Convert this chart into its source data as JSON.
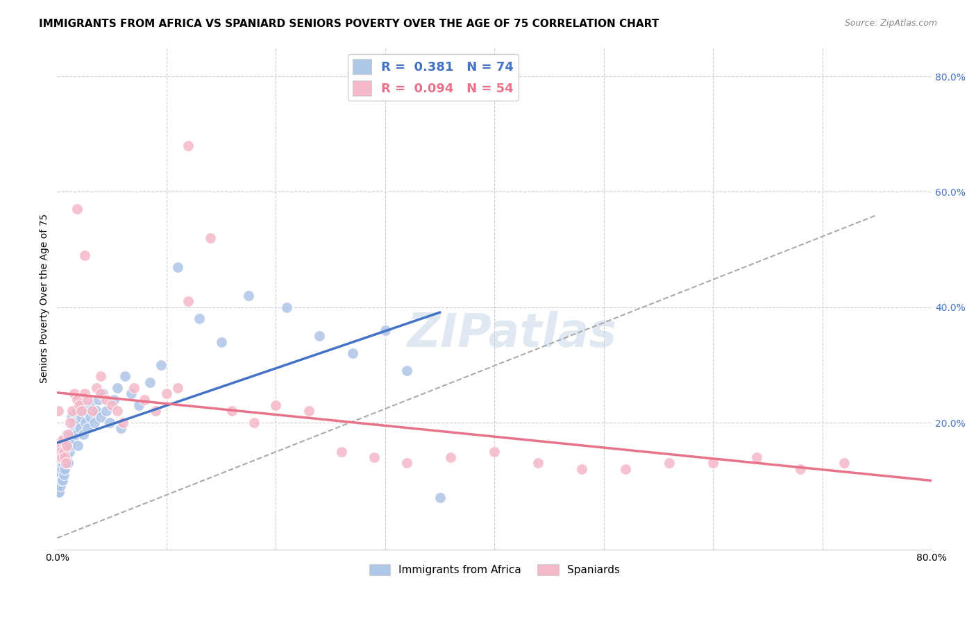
{
  "title": "IMMIGRANTS FROM AFRICA VS SPANIARD SENIORS POVERTY OVER THE AGE OF 75 CORRELATION CHART",
  "source": "Source: ZipAtlas.com",
  "ylabel": "Seniors Poverty Over the Age of 75",
  "xlim": [
    0,
    0.8
  ],
  "ylim": [
    -0.02,
    0.85
  ],
  "y_ticks_right": [
    0.2,
    0.4,
    0.6,
    0.8
  ],
  "y_tick_labels_right": [
    "20.0%",
    "40.0%",
    "60.0%",
    "80.0%"
  ],
  "legend_blue_label": "R =  0.381   N = 74",
  "legend_pink_label": "R =  0.094   N = 54",
  "legend_blue_color": "#aec6e8",
  "legend_pink_color": "#f4b8c8",
  "blue_trend_color": "#4472c4",
  "pink_trend_color": "#e8728a",
  "blue_dot_color": "#aec6e8",
  "pink_dot_color": "#f4b8c8",
  "grid_color": "#cccccc",
  "watermark_text": "ZIPatlas",
  "blue_scatter_x": [
    0.001,
    0.001,
    0.001,
    0.002,
    0.002,
    0.002,
    0.002,
    0.002,
    0.003,
    0.003,
    0.003,
    0.003,
    0.004,
    0.004,
    0.004,
    0.005,
    0.005,
    0.005,
    0.006,
    0.006,
    0.006,
    0.007,
    0.007,
    0.008,
    0.008,
    0.009,
    0.009,
    0.01,
    0.01,
    0.011,
    0.012,
    0.013,
    0.013,
    0.014,
    0.015,
    0.016,
    0.017,
    0.018,
    0.019,
    0.02,
    0.021,
    0.022,
    0.023,
    0.024,
    0.025,
    0.026,
    0.028,
    0.03,
    0.032,
    0.034,
    0.036,
    0.038,
    0.04,
    0.042,
    0.045,
    0.048,
    0.052,
    0.055,
    0.058,
    0.062,
    0.068,
    0.075,
    0.085,
    0.095,
    0.11,
    0.13,
    0.15,
    0.175,
    0.21,
    0.24,
    0.27,
    0.3,
    0.32,
    0.35
  ],
  "blue_scatter_y": [
    0.08,
    0.1,
    0.12,
    0.08,
    0.1,
    0.11,
    0.13,
    0.15,
    0.09,
    0.11,
    0.13,
    0.16,
    0.1,
    0.12,
    0.14,
    0.1,
    0.13,
    0.16,
    0.11,
    0.14,
    0.17,
    0.12,
    0.15,
    0.13,
    0.16,
    0.14,
    0.18,
    0.13,
    0.17,
    0.15,
    0.16,
    0.18,
    0.21,
    0.17,
    0.19,
    0.2,
    0.18,
    0.22,
    0.16,
    0.2,
    0.19,
    0.21,
    0.23,
    0.18,
    0.22,
    0.2,
    0.19,
    0.21,
    0.23,
    0.2,
    0.22,
    0.24,
    0.21,
    0.25,
    0.22,
    0.2,
    0.24,
    0.26,
    0.19,
    0.28,
    0.25,
    0.23,
    0.27,
    0.3,
    0.47,
    0.38,
    0.34,
    0.42,
    0.4,
    0.35,
    0.32,
    0.36,
    0.29,
    0.07
  ],
  "pink_scatter_x": [
    0.001,
    0.001,
    0.002,
    0.003,
    0.004,
    0.005,
    0.006,
    0.007,
    0.008,
    0.009,
    0.01,
    0.012,
    0.014,
    0.016,
    0.018,
    0.02,
    0.022,
    0.025,
    0.028,
    0.032,
    0.036,
    0.04,
    0.045,
    0.05,
    0.055,
    0.06,
    0.07,
    0.08,
    0.09,
    0.1,
    0.11,
    0.12,
    0.14,
    0.16,
    0.18,
    0.2,
    0.23,
    0.26,
    0.29,
    0.32,
    0.36,
    0.4,
    0.44,
    0.48,
    0.52,
    0.56,
    0.6,
    0.64,
    0.68,
    0.72,
    0.018,
    0.025,
    0.04,
    0.12
  ],
  "pink_scatter_y": [
    0.14,
    0.22,
    0.16,
    0.15,
    0.14,
    0.17,
    0.15,
    0.14,
    0.13,
    0.16,
    0.18,
    0.2,
    0.22,
    0.25,
    0.24,
    0.23,
    0.22,
    0.25,
    0.24,
    0.22,
    0.26,
    0.25,
    0.24,
    0.23,
    0.22,
    0.2,
    0.26,
    0.24,
    0.22,
    0.25,
    0.26,
    0.68,
    0.52,
    0.22,
    0.2,
    0.23,
    0.22,
    0.15,
    0.14,
    0.13,
    0.14,
    0.15,
    0.13,
    0.12,
    0.12,
    0.13,
    0.13,
    0.14,
    0.12,
    0.13,
    0.57,
    0.49,
    0.28,
    0.41
  ],
  "background_color": "#ffffff",
  "title_fontsize": 11,
  "axis_label_fontsize": 10,
  "tick_fontsize": 10,
  "legend_fontsize": 13,
  "ref_line_x": [
    0.0,
    0.75
  ],
  "ref_line_y": [
    0.0,
    0.56
  ]
}
